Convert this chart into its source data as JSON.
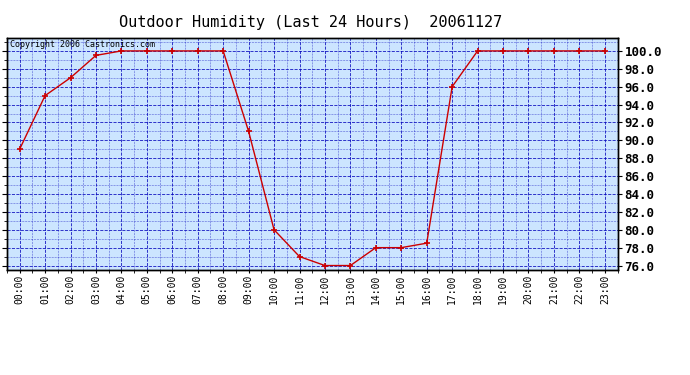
{
  "title": "Outdoor Humidity (Last 24 Hours)  20061127",
  "copyright": "Copyright 2006 Castronics.com",
  "hours": [
    0,
    1,
    2,
    3,
    4,
    5,
    6,
    7,
    8,
    9,
    10,
    11,
    12,
    13,
    14,
    15,
    16,
    17,
    18,
    19,
    20,
    21,
    22,
    23
  ],
  "humidity": [
    89.0,
    95.0,
    97.0,
    99.5,
    100.0,
    100.0,
    100.0,
    100.0,
    100.0,
    91.0,
    80.0,
    77.0,
    76.0,
    76.0,
    78.0,
    78.0,
    78.5,
    96.0,
    100.0,
    100.0,
    100.0,
    100.0,
    100.0,
    100.0
  ],
  "xlabels": [
    "00:00",
    "01:00",
    "02:00",
    "03:00",
    "04:00",
    "05:00",
    "06:00",
    "07:00",
    "08:00",
    "09:00",
    "10:00",
    "11:00",
    "12:00",
    "13:00",
    "14:00",
    "15:00",
    "16:00",
    "17:00",
    "18:00",
    "19:00",
    "20:00",
    "21:00",
    "22:00",
    "23:00"
  ],
  "ylim": [
    75.5,
    101.5
  ],
  "yticks": [
    76.0,
    78.0,
    80.0,
    82.0,
    84.0,
    86.0,
    88.0,
    90.0,
    92.0,
    94.0,
    96.0,
    98.0,
    100.0
  ],
  "line_color": "#cc0000",
  "marker_color": "#cc0000",
  "bg_color": "#cce5ff",
  "grid_color": "#0000bb",
  "border_color": "#000000",
  "title_fontsize": 11,
  "copyright_fontsize": 6,
  "tick_fontsize": 7,
  "ylabel_right_fontsize": 9
}
